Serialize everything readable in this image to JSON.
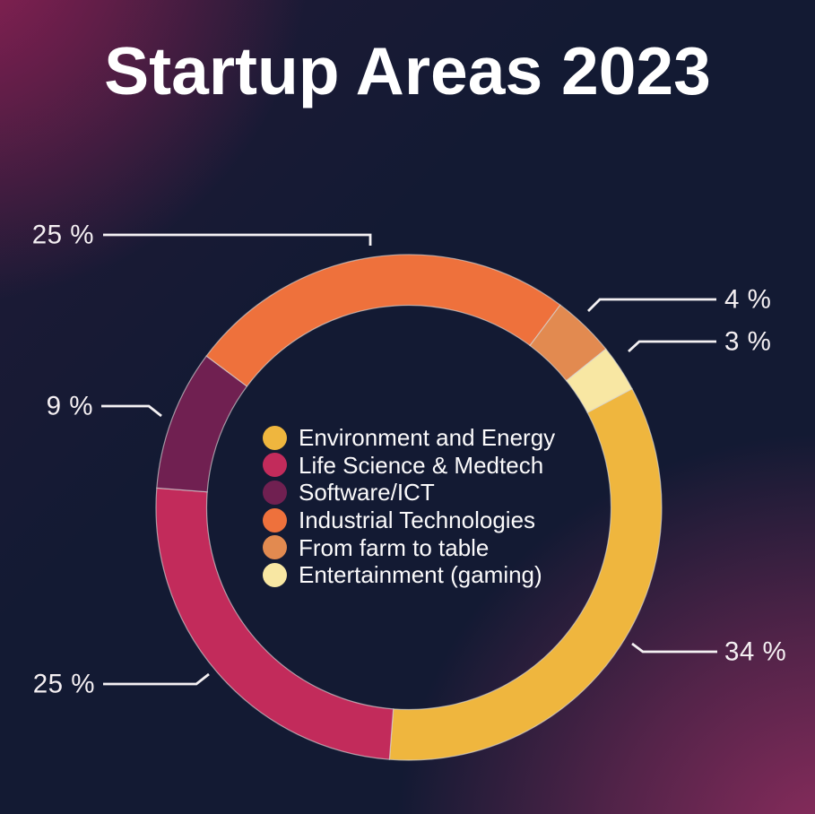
{
  "title": "Startup Areas 2023",
  "colors": {
    "background": "#131a33",
    "glow_top_left": "#962156",
    "glow_bottom_right": "#922d5f",
    "callout_line": "#f4f1f3",
    "text": "#ffffff",
    "slice_separator": "#d9d9d9"
  },
  "chart_data": {
    "type": "pie",
    "subtype": "donut",
    "title": "Startup Areas 2023",
    "legend_position": "center",
    "start_angle_clockwise_from_top_deg": 62,
    "total": 100,
    "series": [
      {
        "name": "Environment and Energy",
        "value": 34,
        "label": "34 %",
        "color": "#efb63e"
      },
      {
        "name": "Life Science & Medtech",
        "value": 25,
        "label": "25 %",
        "color": "#c22b5b"
      },
      {
        "name": "Software/ICT",
        "value": 9,
        "label": "9 %",
        "color": "#702051"
      },
      {
        "name": "Industrial Technologies",
        "value": 25,
        "label": "25 %",
        "color": "#ee713c"
      },
      {
        "name": "From farm to table",
        "value": 4,
        "label": "4 %",
        "color": "#e28a50"
      },
      {
        "name": "Entertainment (gaming)",
        "value": 3,
        "label": "3 %",
        "color": "#f8e7a3"
      }
    ]
  }
}
